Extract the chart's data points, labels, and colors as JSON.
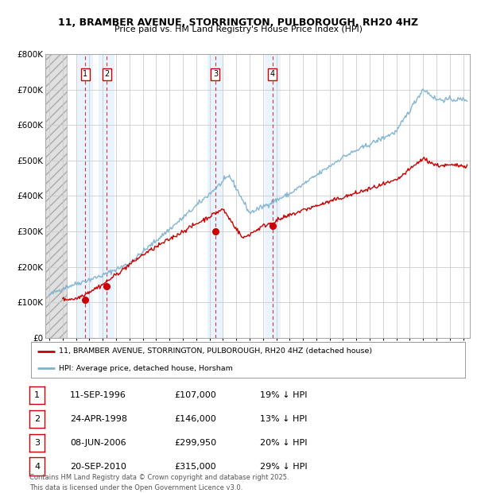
{
  "title": "11, BRAMBER AVENUE, STORRINGTON, PULBOROUGH, RH20 4HZ",
  "subtitle": "Price paid vs. HM Land Registry's House Price Index (HPI)",
  "ylim": [
    0,
    800000
  ],
  "yticks": [
    0,
    100000,
    200000,
    300000,
    400000,
    500000,
    600000,
    700000,
    800000
  ],
  "ytick_labels": [
    "£0",
    "£100K",
    "£200K",
    "£300K",
    "£400K",
    "£500K",
    "£600K",
    "£700K",
    "£800K"
  ],
  "xlim_start": 1993.7,
  "xlim_end": 2025.5,
  "hatch_end": 1995.3,
  "sale_dates": [
    1996.7,
    1998.3,
    2006.44,
    2010.72
  ],
  "sale_prices": [
    107000,
    146000,
    299950,
    315000
  ],
  "sale_labels": [
    "1",
    "2",
    "3",
    "4"
  ],
  "legend_red": "11, BRAMBER AVENUE, STORRINGTON, PULBOROUGH, RH20 4HZ (detached house)",
  "legend_blue": "HPI: Average price, detached house, Horsham",
  "table_entries": [
    {
      "num": "1",
      "date": "11-SEP-1996",
      "price": "£107,000",
      "pct": "19% ↓ HPI"
    },
    {
      "num": "2",
      "date": "24-APR-1998",
      "price": "£146,000",
      "pct": "13% ↓ HPI"
    },
    {
      "num": "3",
      "date": "08-JUN-2006",
      "price": "£299,950",
      "pct": "20% ↓ HPI"
    },
    {
      "num": "4",
      "date": "20-SEP-2010",
      "price": "£315,000",
      "pct": "29% ↓ HPI"
    }
  ],
  "footer": "Contains HM Land Registry data © Crown copyright and database right 2025.\nThis data is licensed under the Open Government Licence v3.0.",
  "red_color": "#cc0000",
  "blue_color": "#7fb3d3",
  "grid_color": "#cccccc",
  "bg_color": "#ffffff"
}
